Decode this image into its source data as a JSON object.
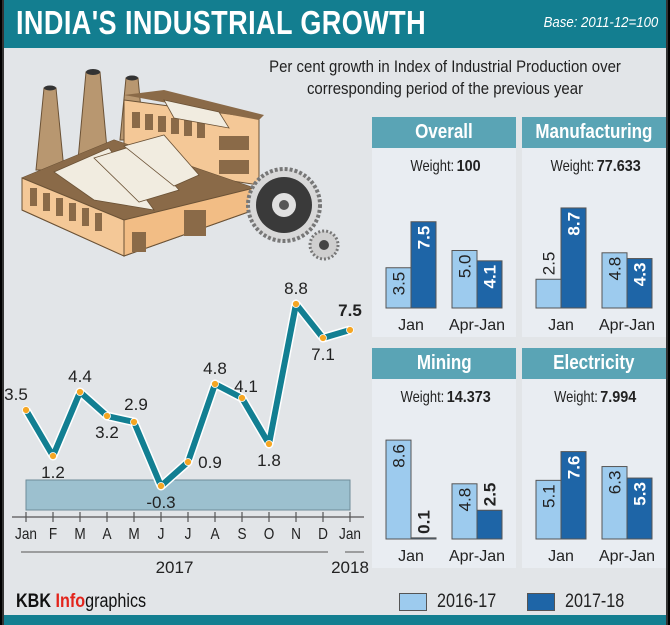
{
  "header": {
    "title": "INDIA'S INDUSTRIAL GROWTH",
    "base": "Base: 2011-12=100"
  },
  "subtitle": "Per cent growth in Index of Industrial Production over corresponding period of the previous year",
  "illustration": {
    "icons": [
      "factory-icon",
      "gear-icon"
    ]
  },
  "footer": {
    "credit_kbk": "KBK ",
    "credit_info": "Info",
    "credit_graphics": "graphics"
  },
  "legend": [
    {
      "label": "2016-17",
      "color": "#9dcbee"
    },
    {
      "label": "2017-18",
      "color": "#1e65a7"
    }
  ],
  "colors": {
    "line": "#127f92",
    "marker": "#f5a623",
    "negative_band": "#9cc0cf",
    "bar_prev": "#9dcbee",
    "bar_curr": "#1e65a7",
    "panel_header": "#5aa4b5",
    "title_bar": "#137e90"
  },
  "chart_data": [
    {
      "type": "line",
      "title": "Monthly IIP growth",
      "x": [
        "Jan",
        "F",
        "M",
        "A",
        "M",
        "J",
        "J",
        "A",
        "S",
        "O",
        "N",
        "D",
        "Jan"
      ],
      "values": [
        3.5,
        1.2,
        4.4,
        3.2,
        2.9,
        -0.3,
        0.9,
        4.8,
        4.1,
        1.8,
        8.8,
        7.1,
        7.5
      ],
      "labels": [
        "3.5",
        "1.2",
        "4.4",
        "3.2",
        "2.9",
        "-0.3",
        "0.9",
        "4.8",
        "4.1",
        "1.8",
        "8.8",
        "7.1",
        "7.5"
      ],
      "year_groups": [
        {
          "label": "2017",
          "from": 0,
          "to": 11
        },
        {
          "label": "2018",
          "from": 12,
          "to": 12
        }
      ],
      "ylim": [
        -1.5,
        9.5
      ],
      "grid": false,
      "negative_band": [
        -1.5,
        0
      ]
    },
    {
      "type": "bar",
      "title": "Overall",
      "weight_label": "Weight: ",
      "weight": "100",
      "categories": [
        "Jan",
        "Apr-Jan"
      ],
      "series": [
        {
          "name": "2016-17",
          "values": [
            3.5,
            5.0
          ],
          "labels": [
            "3.5",
            "5.0"
          ]
        },
        {
          "name": "2017-18",
          "values": [
            7.5,
            4.1
          ],
          "labels": [
            "7.5",
            "4.1"
          ]
        }
      ],
      "ylim": [
        0,
        10
      ]
    },
    {
      "type": "bar",
      "title": "Manufacturing",
      "weight_label": "Weight: ",
      "weight": "77.633",
      "categories": [
        "Jan",
        "Apr-Jan"
      ],
      "series": [
        {
          "name": "2016-17",
          "values": [
            2.5,
            4.8
          ],
          "labels": [
            "2.5",
            "4.8"
          ]
        },
        {
          "name": "2017-18",
          "values": [
            8.7,
            4.3
          ],
          "labels": [
            "8.7",
            "4.3"
          ]
        }
      ],
      "ylim": [
        0,
        10
      ]
    },
    {
      "type": "bar",
      "title": "Mining",
      "weight_label": "Weight: ",
      "weight": "14.373",
      "categories": [
        "Jan",
        "Apr-Jan"
      ],
      "series": [
        {
          "name": "2016-17",
          "values": [
            8.6,
            4.8
          ],
          "labels": [
            "8.6",
            "4.8"
          ]
        },
        {
          "name": "2017-18",
          "values": [
            0.1,
            2.5
          ],
          "labels": [
            "0.1",
            "2.5"
          ]
        }
      ],
      "ylim": [
        0,
        10
      ]
    },
    {
      "type": "bar",
      "title": "Electricity",
      "weight_label": "Weight: ",
      "weight": "7.994",
      "categories": [
        "Jan",
        "Apr-Jan"
      ],
      "series": [
        {
          "name": "2016-17",
          "values": [
            5.1,
            6.3
          ],
          "labels": [
            "5.1",
            "6.3"
          ]
        },
        {
          "name": "2017-18",
          "values": [
            7.6,
            5.3
          ],
          "labels": [
            "7.6",
            "5.3"
          ]
        }
      ],
      "ylim": [
        0,
        10
      ]
    }
  ]
}
